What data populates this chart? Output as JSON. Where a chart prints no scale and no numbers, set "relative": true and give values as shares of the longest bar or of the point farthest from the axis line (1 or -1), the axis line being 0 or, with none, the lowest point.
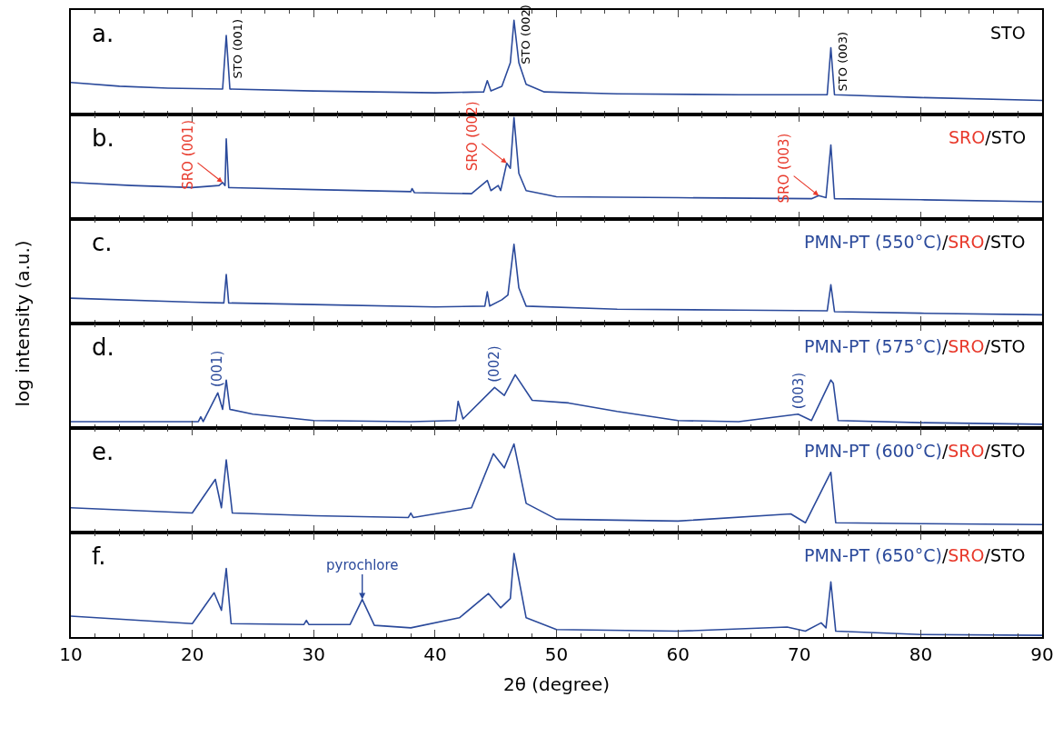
{
  "chart_data": [
    {
      "type": "line",
      "relative": true,
      "color": "#2b4a9b",
      "xlim": [
        10,
        90
      ],
      "xticks": [
        10,
        20,
        30,
        40,
        50,
        60,
        70,
        80,
        90
      ],
      "tick_labels": false,
      "x": [
        10,
        14,
        18,
        22.5,
        22.8,
        23.1,
        30,
        40,
        44,
        44.3,
        44.6,
        45.5,
        46.2,
        46.5,
        46.9,
        47.5,
        49,
        55,
        65,
        72.3,
        72.6,
        72.9,
        80,
        90
      ],
      "values": [
        0.34,
        0.3,
        0.28,
        0.27,
        0.84,
        0.27,
        0.25,
        0.23,
        0.24,
        0.36,
        0.25,
        0.3,
        0.55,
        1,
        0.55,
        0.32,
        0.24,
        0.22,
        0.21,
        0.21,
        0.71,
        0.21,
        0.18,
        0.15
      ],
      "annotations": [
        "a.",
        "STO",
        {
          "text": "STO (001)",
          "x": 22.8,
          "y": 0.84
        },
        {
          "text": "STO (002)",
          "x": 46.5,
          "y": 1
        },
        {
          "text": "STO (003)",
          "x": 72.6,
          "y": 0.71
        }
      ]
    },
    {
      "type": "line",
      "relative": true,
      "color": "#2b4a9b",
      "xlim": [
        10,
        90
      ],
      "xticks": [
        10,
        20,
        30,
        40,
        50,
        60,
        70,
        80,
        90
      ],
      "tick_labels": false,
      "x": [
        10,
        15,
        20,
        22.2,
        22.5,
        22.7,
        22.8,
        23.0,
        30,
        38,
        38.1,
        38.3,
        43,
        44.3,
        44.6,
        45.2,
        45.4,
        45.9,
        46.2,
        46.5,
        46.9,
        47.5,
        50,
        60,
        71,
        71.6,
        72.2,
        72.6,
        72.9,
        80,
        90
      ],
      "values": [
        0.36,
        0.33,
        0.31,
        0.33,
        0.36,
        0.33,
        0.79,
        0.31,
        0.29,
        0.27,
        0.3,
        0.26,
        0.25,
        0.38,
        0.28,
        0.33,
        0.28,
        0.55,
        0.5,
        1,
        0.45,
        0.28,
        0.22,
        0.21,
        0.2,
        0.23,
        0.21,
        0.73,
        0.2,
        0.19,
        0.17
      ],
      "annotations": [
        "b.",
        "SRO/STO",
        {
          "text": "SRO (001)",
          "x": 22.5,
          "y": 0.36
        },
        {
          "text": "SRO (002)",
          "x": 45.9,
          "y": 0.55
        },
        {
          "text": "SRO (003)",
          "x": 71.6,
          "y": 0.23
        }
      ]
    },
    {
      "type": "line",
      "relative": true,
      "color": "#2b4a9b",
      "xlim": [
        10,
        90
      ],
      "xticks": [
        10,
        20,
        30,
        40,
        50,
        60,
        70,
        80,
        90
      ],
      "tick_labels": false,
      "x": [
        10,
        20,
        22.6,
        22.8,
        23.0,
        30,
        40,
        44.1,
        44.3,
        44.5,
        45.5,
        46.0,
        46.5,
        46.9,
        47.5,
        55,
        65,
        72.3,
        72.6,
        72.9,
        80,
        90
      ],
      "values": [
        0.32,
        0.27,
        0.26,
        0.62,
        0.26,
        0.24,
        0.21,
        0.22,
        0.4,
        0.22,
        0.3,
        0.36,
        1,
        0.45,
        0.22,
        0.18,
        0.17,
        0.16,
        0.49,
        0.15,
        0.13,
        0.11
      ],
      "annotations": [
        "c.",
        "PMN-PT (550°C)/SRO/STO"
      ]
    },
    {
      "type": "line",
      "relative": true,
      "color": "#2b4a9b",
      "xlim": [
        10,
        90
      ],
      "xticks": [
        10,
        20,
        30,
        40,
        50,
        60,
        70,
        80,
        90
      ],
      "tick_labels": false,
      "ylabel": "log intensity (a.u.)",
      "x": [
        10,
        20.5,
        20.7,
        20.9,
        22.1,
        22.5,
        22.8,
        23.1,
        25,
        30,
        38,
        41.7,
        41.9,
        42.3,
        44.9,
        45.7,
        46.6,
        48,
        51,
        55,
        60,
        65,
        69.9,
        71,
        72.6,
        72.8,
        73.2,
        80,
        90
      ],
      "values": [
        0.12,
        0.12,
        0.21,
        0.12,
        0.66,
        0.35,
        0.9,
        0.35,
        0.26,
        0.14,
        0.12,
        0.14,
        0.5,
        0.17,
        0.76,
        0.61,
        1,
        0.52,
        0.47,
        0.31,
        0.14,
        0.12,
        0.26,
        0.14,
        0.9,
        0.84,
        0.14,
        0.1,
        0.07
      ],
      "annotations": [
        "d.",
        "PMN-PT (575°C)/SRO/STO",
        {
          "text": "(001)",
          "x": 22.1,
          "y": 0.66
        },
        {
          "text": "(002)",
          "x": 44.9,
          "y": 0.76
        },
        {
          "text": "(003)",
          "x": 69.9,
          "y": 0.26
        }
      ]
    },
    {
      "type": "line",
      "relative": true,
      "color": "#2b4a9b",
      "xlim": [
        10,
        90
      ],
      "xticks": [
        10,
        20,
        30,
        40,
        50,
        60,
        70,
        80,
        90
      ],
      "tick_labels": false,
      "x": [
        10,
        20,
        21.9,
        22.4,
        22.8,
        23.3,
        30,
        37.8,
        38,
        38.2,
        43,
        44.8,
        45.7,
        46.5,
        47.5,
        50,
        60,
        69.3,
        70.5,
        72.6,
        73,
        80,
        90
      ],
      "values": [
        0.28,
        0.22,
        0.6,
        0.28,
        0.82,
        0.22,
        0.19,
        0.17,
        0.22,
        0.17,
        0.28,
        0.89,
        0.73,
        1,
        0.33,
        0.15,
        0.13,
        0.21,
        0.11,
        0.68,
        0.11,
        0.1,
        0.09
      ],
      "annotations": [
        "e.",
        "PMN-PT (600°C)/SRO/STO"
      ]
    },
    {
      "type": "line",
      "relative": true,
      "color": "#2b4a9b",
      "xlim": [
        10,
        90
      ],
      "xticks": [
        10,
        20,
        30,
        40,
        50,
        60,
        70,
        80,
        90
      ],
      "tick_labels": "x",
      "xlabel": "2θ (degree)",
      "x": [
        10,
        20,
        21.8,
        22.4,
        22.8,
        23.2,
        29.2,
        29.4,
        29.6,
        33,
        34.0,
        35,
        38,
        42,
        44.4,
        45.4,
        46.2,
        46.5,
        47.5,
        50,
        60,
        69,
        70.5,
        71.8,
        72.2,
        72.6,
        73,
        80,
        90
      ],
      "values": [
        0.25,
        0.16,
        0.53,
        0.32,
        0.82,
        0.16,
        0.15,
        0.2,
        0.15,
        0.15,
        0.45,
        0.14,
        0.11,
        0.23,
        0.52,
        0.35,
        0.46,
        1,
        0.23,
        0.09,
        0.07,
        0.12,
        0.07,
        0.17,
        0.11,
        0.66,
        0.07,
        0.03,
        0.02
      ],
      "annotations": [
        "f.",
        "PMN-PT (650°C)/SRO/STO",
        {
          "text": "pyrochlore",
          "x": 34.0,
          "y": 0.45
        }
      ]
    }
  ]
}
